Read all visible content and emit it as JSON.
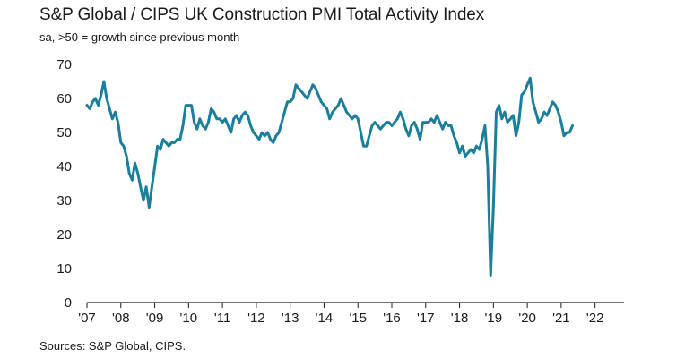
{
  "chart_data": {
    "type": "line",
    "title": "S&P Global / CIPS UK Construction PMI Total Activity Index",
    "subtitle": "sa, >50 = growth since previous month",
    "source": "Sources: S&P Global, CIPS.",
    "xlabel": "",
    "ylabel": "",
    "ylim": [
      0,
      70
    ],
    "xlim": [
      2007.0,
      2022.75
    ],
    "yticks": [
      "0",
      "10",
      "20",
      "30",
      "40",
      "50",
      "60",
      "70"
    ],
    "xticks": [
      {
        "label": "'07",
        "value": 2007
      },
      {
        "label": "'08",
        "value": 2008
      },
      {
        "label": "'09",
        "value": 2009
      },
      {
        "label": "'10",
        "value": 2010
      },
      {
        "label": "'11",
        "value": 2011
      },
      {
        "label": "'12",
        "value": 2012
      },
      {
        "label": "'13",
        "value": 2013
      },
      {
        "label": "'14",
        "value": 2014
      },
      {
        "label": "'15",
        "value": 2015
      },
      {
        "label": "'16",
        "value": 2016
      },
      {
        "label": "'17",
        "value": 2017
      },
      {
        "label": "'18",
        "value": 2018
      },
      {
        "label": "'19",
        "value": 2019
      },
      {
        "label": "'20",
        "value": 2020
      },
      {
        "label": "'21",
        "value": 2021
      },
      {
        "label": "'22",
        "value": 2022
      }
    ],
    "grid": false,
    "line_color": "#1a7f9a",
    "series": [
      {
        "x_start": "2007-01",
        "values": [
          58,
          57,
          59,
          60,
          58,
          61,
          65,
          60,
          57,
          54,
          56,
          53,
          47,
          46,
          43,
          38,
          36,
          41,
          38,
          34,
          30,
          34,
          28,
          34,
          40,
          46,
          45,
          48,
          47,
          46,
          47,
          47,
          48,
          48,
          52,
          58,
          58,
          58,
          53,
          51,
          54,
          52,
          51,
          53,
          57,
          56,
          54,
          54,
          53,
          54,
          52,
          50,
          54,
          55,
          53,
          55,
          56,
          55,
          52,
          50,
          49,
          48,
          50,
          49,
          50,
          48,
          47,
          49,
          50,
          53,
          56,
          59,
          59,
          60,
          64,
          63,
          62,
          61,
          60,
          62,
          64,
          63,
          61,
          59,
          58,
          57,
          54,
          56,
          57,
          58,
          60,
          58,
          56,
          55,
          54,
          55,
          54,
          50,
          46,
          46,
          49,
          52,
          53,
          52,
          51,
          52,
          53,
          53,
          52,
          53,
          54,
          56,
          54,
          51,
          49,
          52,
          53,
          51,
          48,
          53,
          53,
          53,
          54,
          53,
          55,
          53,
          51,
          53,
          52,
          52,
          49,
          47,
          44,
          46,
          43,
          44,
          45,
          44,
          46,
          45,
          48,
          52,
          40,
          8,
          28,
          56,
          58,
          54,
          56,
          53,
          54,
          55,
          49,
          53,
          61,
          62,
          64,
          66,
          59,
          56,
          53,
          54,
          56,
          55,
          57,
          59,
          58,
          56,
          53,
          49,
          50,
          50,
          52
        ]
      }
    ]
  }
}
